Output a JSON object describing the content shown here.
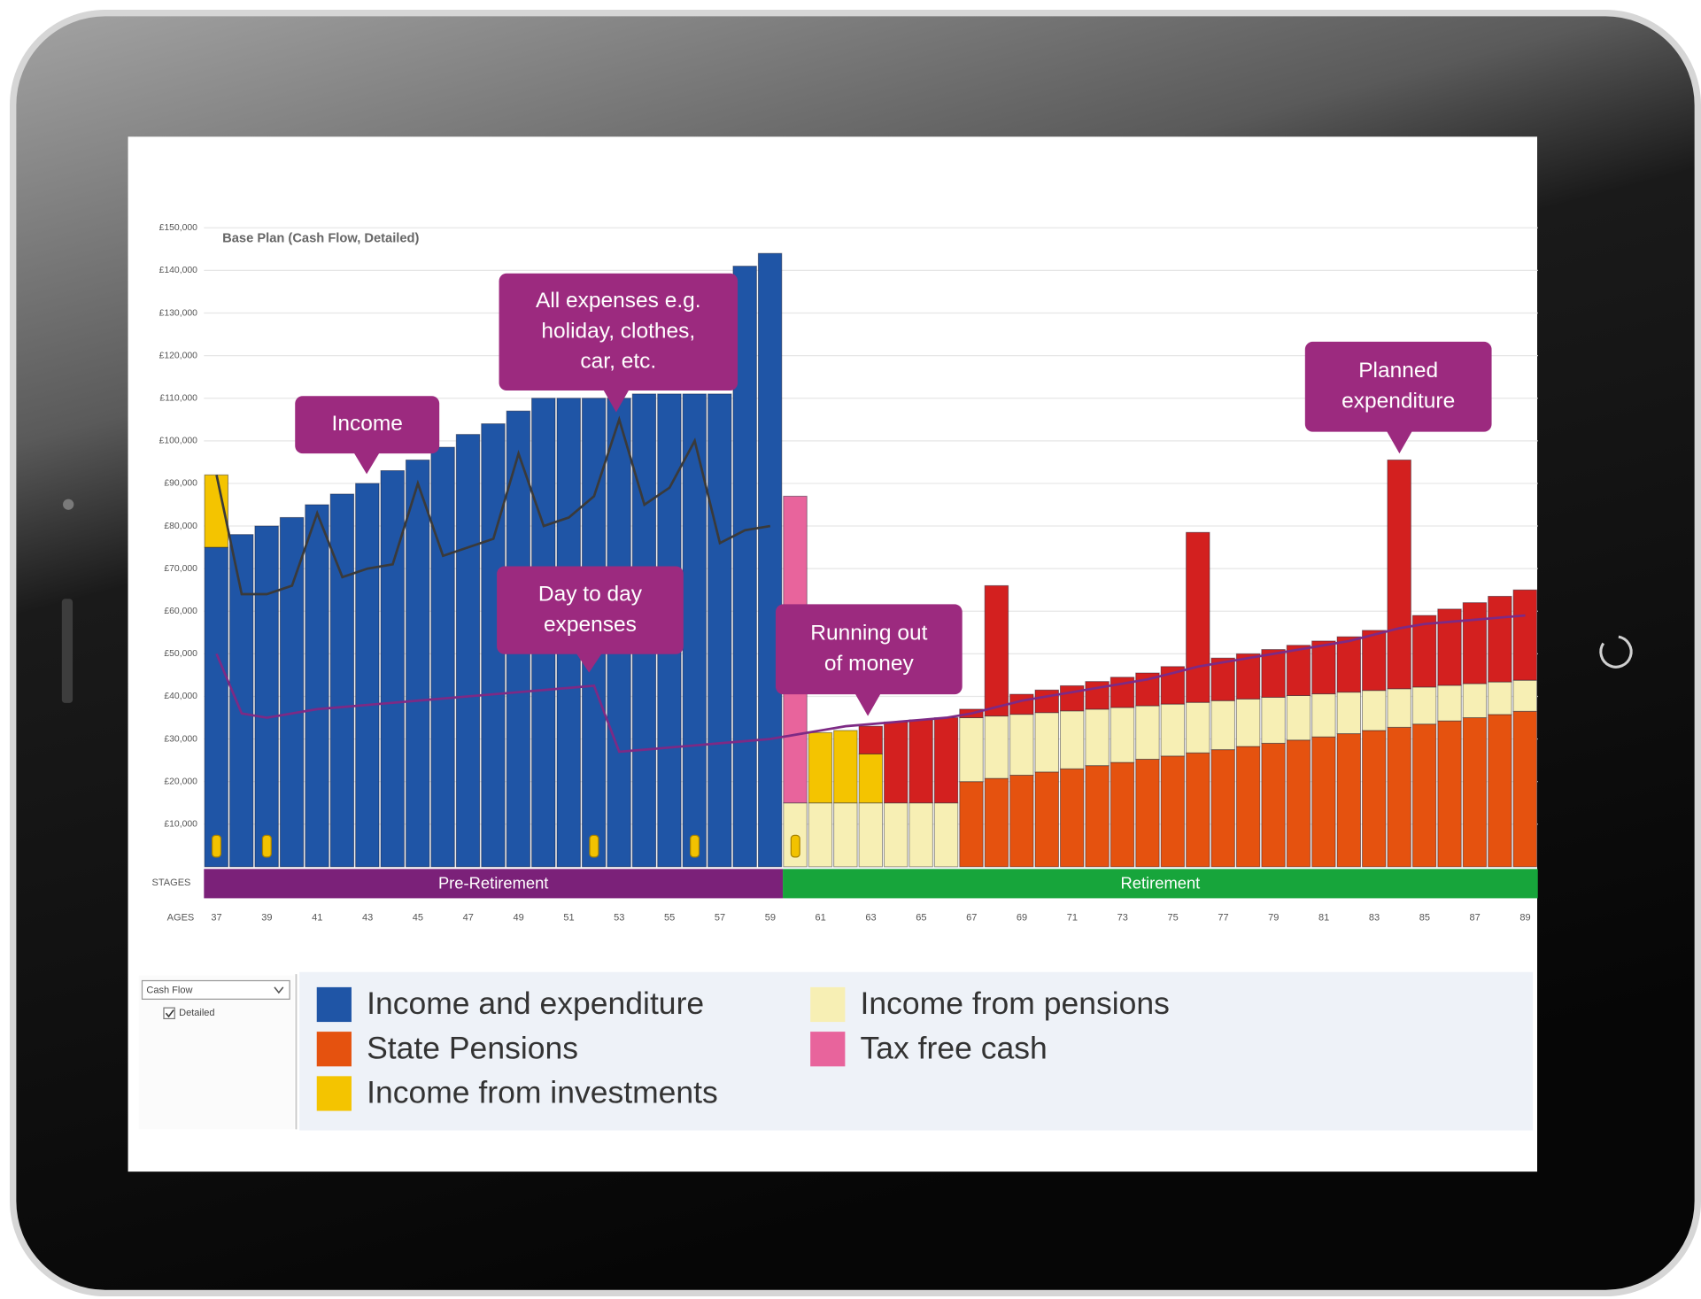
{
  "controls": {
    "view": "Cash Flow",
    "detail": "Detailed"
  },
  "chart_data": {
    "type": "bar",
    "stacked": true,
    "title": "Base Plan  (Cash Flow, Detailed)",
    "x_label": "AGES",
    "stage_label": "STAGES",
    "stages": [
      {
        "label": "Pre-Retirement",
        "ages": [
          37,
          59
        ],
        "color": "#7b2179"
      },
      {
        "label": "Retirement",
        "ages": [
          60,
          89
        ],
        "color": "#17a53b"
      }
    ],
    "categories": [
      37,
      null,
      39,
      null,
      41,
      null,
      43,
      null,
      45,
      null,
      47,
      null,
      49,
      null,
      51,
      null,
      53,
      null,
      55,
      null,
      57,
      null,
      59,
      null,
      61,
      null,
      63,
      null,
      65,
      null,
      67,
      null,
      69,
      null,
      71,
      null,
      73,
      null,
      75,
      null,
      77,
      null,
      79,
      null,
      81,
      null,
      83,
      null,
      85,
      null,
      87,
      null,
      89
    ],
    "ylim": [
      0,
      150000
    ],
    "yticks": [
      {
        "value": 10000,
        "label": "£10,000"
      },
      {
        "value": 20000,
        "label": "£20,000"
      },
      {
        "value": 30000,
        "label": "£30,000"
      },
      {
        "value": 40000,
        "label": "£40,000"
      },
      {
        "value": 50000,
        "label": "£50,000"
      },
      {
        "value": 60000,
        "label": "£60,000"
      },
      {
        "value": 70000,
        "label": "£70,000"
      },
      {
        "value": 80000,
        "label": "£80,000"
      },
      {
        "value": 90000,
        "label": "£90,000"
      },
      {
        "value": 100000,
        "label": "£100,000"
      },
      {
        "value": 110000,
        "label": "£110,000"
      },
      {
        "value": 120000,
        "label": "£120,000"
      },
      {
        "value": 130000,
        "label": "£130,000"
      },
      {
        "value": 140000,
        "label": "£140,000"
      },
      {
        "value": 150000,
        "label": "£150,000"
      }
    ],
    "grid": true,
    "event_ages": [
      37,
      39,
      52,
      56,
      60
    ],
    "series": [
      {
        "name": "Income and expenditure",
        "color": "#1f55a6",
        "values": [
          75000,
          78000,
          80000,
          82000,
          85000,
          87500,
          90000,
          93000,
          95500,
          98500,
          101500,
          104000,
          107000,
          110000,
          110000,
          110000,
          110000,
          111000,
          111000,
          111000,
          111000,
          141000,
          144000,
          0,
          0,
          0,
          0,
          0,
          0,
          0,
          0,
          0,
          0,
          0,
          0,
          0,
          0,
          0,
          0,
          0,
          0,
          0,
          0,
          0,
          0,
          0,
          0,
          0,
          0,
          0,
          0,
          0,
          0
        ]
      },
      {
        "name": "State Pensions",
        "color": "#e5520f",
        "values": [
          0,
          0,
          0,
          0,
          0,
          0,
          0,
          0,
          0,
          0,
          0,
          0,
          0,
          0,
          0,
          0,
          0,
          0,
          0,
          0,
          0,
          0,
          0,
          0,
          0,
          0,
          0,
          0,
          0,
          0,
          20000,
          20750,
          21500,
          22250,
          23000,
          23750,
          24500,
          25250,
          26000,
          26750,
          27500,
          28250,
          29000,
          29750,
          30500,
          31250,
          32000,
          32750,
          33500,
          34250,
          35000,
          35750,
          36500
        ]
      },
      {
        "name": "Income from investments",
        "color": "#f4c400",
        "values": [
          17000,
          0,
          0,
          0,
          0,
          0,
          0,
          0,
          0,
          0,
          0,
          0,
          0,
          0,
          0,
          0,
          0,
          0,
          0,
          0,
          0,
          0,
          0,
          0,
          16500,
          17000,
          11500,
          0,
          0,
          0,
          0,
          0,
          0,
          0,
          0,
          0,
          0,
          0,
          0,
          0,
          0,
          0,
          0,
          0,
          0,
          0,
          0,
          0,
          0,
          0,
          0,
          0,
          0
        ]
      },
      {
        "name": "Income from pensions",
        "color": "#f7efb4",
        "values": [
          0,
          0,
          0,
          0,
          0,
          0,
          0,
          0,
          0,
          0,
          0,
          0,
          0,
          0,
          0,
          0,
          0,
          0,
          0,
          0,
          0,
          0,
          0,
          15000,
          15000,
          15000,
          15000,
          15000,
          15000,
          15000,
          15000,
          14650,
          14300,
          13950,
          13600,
          13250,
          12900,
          12550,
          12200,
          11850,
          11500,
          11150,
          10800,
          10450,
          10100,
          9750,
          9400,
          9050,
          8700,
          8350,
          8000,
          7650,
          7300
        ]
      },
      {
        "name": "Tax free cash",
        "color": "#e8649c",
        "values": [
          0,
          0,
          0,
          0,
          0,
          0,
          0,
          0,
          0,
          0,
          0,
          0,
          0,
          0,
          0,
          0,
          0,
          0,
          0,
          0,
          0,
          0,
          0,
          72000,
          0,
          0,
          0,
          0,
          0,
          0,
          0,
          0,
          0,
          0,
          0,
          0,
          0,
          0,
          0,
          0,
          0,
          0,
          0,
          0,
          0,
          0,
          0,
          0,
          0,
          0,
          0,
          0,
          0
        ]
      },
      {
        "color": "#d3201f",
        "values": [
          0,
          0,
          0,
          0,
          0,
          0,
          0,
          0,
          0,
          0,
          0,
          0,
          0,
          0,
          0,
          0,
          0,
          0,
          0,
          0,
          0,
          0,
          0,
          0,
          0,
          0,
          6500,
          19000,
          19500,
          20000,
          2000,
          30600,
          4700,
          5300,
          5900,
          6500,
          7100,
          7700,
          8800,
          39900,
          10000,
          10600,
          11200,
          11800,
          12400,
          13000,
          14100,
          53700,
          16800,
          17900,
          19000,
          20100,
          21200
        ]
      },
      {
        "type": "line",
        "color": "#3a3a3a",
        "values": [
          92000,
          64000,
          64000,
          66000,
          83000,
          68000,
          70000,
          71000,
          90000,
          73000,
          75000,
          77000,
          97000,
          80000,
          82000,
          87000,
          105000,
          85000,
          89000,
          100000,
          76000,
          79000,
          80000,
          null,
          null,
          null,
          null,
          null,
          null,
          null,
          null,
          null,
          null,
          null,
          null,
          null,
          null,
          null,
          null,
          null,
          null,
          null,
          null,
          null,
          null,
          null,
          null,
          null,
          null,
          null,
          null,
          null,
          null
        ]
      },
      {
        "type": "line",
        "color": "#7d2a85",
        "values": [
          50000,
          36000,
          35000,
          36000,
          37000,
          37500,
          38000,
          38500,
          39000,
          39500,
          40000,
          40500,
          41000,
          41500,
          42000,
          42500,
          27000,
          27500,
          28000,
          28500,
          29000,
          29500,
          30000,
          31000,
          32000,
          33000,
          33500,
          34000,
          34500,
          35000,
          36000,
          37500,
          39000,
          40000,
          41000,
          42000,
          43000,
          44000,
          45500,
          47000,
          48000,
          49000,
          50000,
          51000,
          52000,
          53000,
          54500,
          56000,
          57000,
          57500,
          58000,
          58500,
          59000
        ]
      }
    ],
    "annotations": [
      {
        "lines": [
          "Income"
        ]
      },
      {
        "lines": [
          "All expenses e.g.",
          "holiday, clothes,",
          "car, etc."
        ]
      },
      {
        "lines": [
          "Day to day",
          "expenses"
        ]
      },
      {
        "lines": [
          "Running out",
          "of money"
        ]
      },
      {
        "lines": [
          "Planned",
          "expenditure"
        ]
      }
    ]
  }
}
